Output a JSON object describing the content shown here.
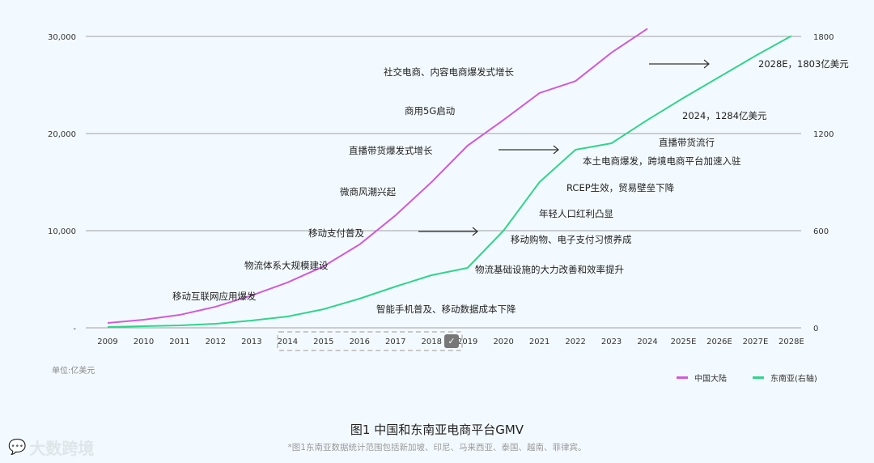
{
  "chart_data": {
    "type": "line",
    "title": "图1 中国和东南亚电商平台GMV",
    "note": "*图1东南亚数据统计范围包括新加坡、印尼、马来西亚、泰国、越南、菲律宾。",
    "unit_label": "单位:亿美元",
    "categories": [
      "2009",
      "2010",
      "2011",
      "2012",
      "2013",
      "2014",
      "2015",
      "2016",
      "2017",
      "2018",
      "2019",
      "2020",
      "2021",
      "2022",
      "2023",
      "2024",
      "2025E",
      "2026E",
      "2027E",
      "2028E"
    ],
    "left_axis": {
      "ticks": [
        "-",
        "10,000",
        "20,000",
        "30,000"
      ],
      "range": [
        0,
        30000
      ]
    },
    "right_axis": {
      "ticks": [
        "0",
        "600",
        "1200",
        "1800"
      ],
      "range": [
        0,
        1800
      ]
    },
    "grid": true,
    "legend_position": "bottom-right",
    "series": [
      {
        "name": "中国大陆",
        "axis": "left",
        "color": "#d35ad6",
        "values": [
          500,
          830,
          1330,
          2170,
          3330,
          4670,
          6330,
          8580,
          11580,
          15000,
          18750,
          21400,
          24170,
          25400,
          28330,
          30800,
          null,
          null,
          null,
          null
        ]
      },
      {
        "name": "东南亚(右轴)",
        "axis": "right",
        "color": "#2fd58a",
        "values": [
          5,
          10,
          15,
          25,
          45,
          70,
          115,
          180,
          255,
          325,
          370,
          600,
          900,
          1100,
          1140,
          1284,
          1420,
          1550,
          1680,
          1803
        ]
      }
    ],
    "annotations": [
      {
        "text": "社交电商、内容电商爆发式增长"
      },
      {
        "text": "商用5G启动"
      },
      {
        "text": "直播带货爆发式增长"
      },
      {
        "text": "微商风潮兴起"
      },
      {
        "text": "移动支付普及"
      },
      {
        "text": "物流体系大规模建设"
      },
      {
        "text": "移动互联网应用爆发"
      },
      {
        "text": "智能手机普及、移动数据成本下降"
      },
      {
        "text": "物流基础设施的大力改善和效率提升"
      },
      {
        "text": "移动购物、电子支付习惯养成"
      },
      {
        "text": "年轻人口红利凸显"
      },
      {
        "text": "RCEP生效，贸易壁垒下降"
      },
      {
        "text": "本土电商爆发，跨境电商平台加速入驻"
      },
      {
        "text": "直播带货流行"
      },
      {
        "text": "2024，1284亿美元"
      },
      {
        "text": "2028E，1803亿美元"
      }
    ]
  },
  "watermark": "大数跨境",
  "colors": {
    "background": "#f3faff",
    "grid": "#a0a0a0",
    "china": "#d35ad6",
    "sea": "#2fd58a"
  }
}
